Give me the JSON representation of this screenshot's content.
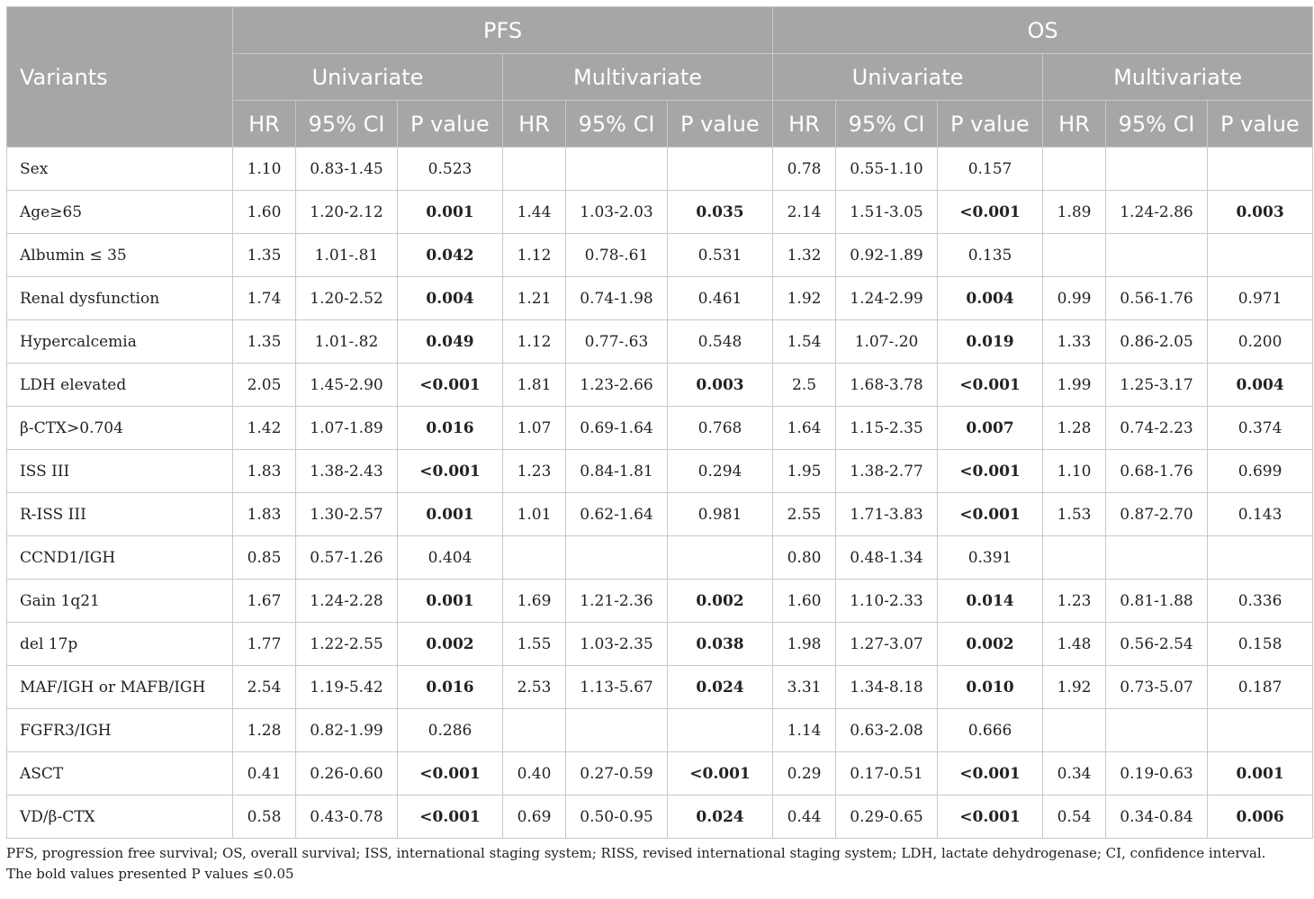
{
  "header": {
    "variants": "Variants",
    "groups": [
      "PFS",
      "OS"
    ],
    "subgroups": [
      "Univariate",
      "Multivariate",
      "Univariate",
      "Multivariate"
    ],
    "cols": [
      "HR",
      "95% CI",
      "P value",
      "HR",
      "95% CI",
      "P value",
      "HR",
      "95% CI",
      "P value",
      "HR",
      "95% CI",
      "P value"
    ]
  },
  "rows": [
    {
      "label": "Sex",
      "cells": [
        {
          "v": "1.10"
        },
        {
          "v": "0.83-1.45"
        },
        {
          "v": "0.523"
        },
        {
          "v": ""
        },
        {
          "v": ""
        },
        {
          "v": ""
        },
        {
          "v": "0.78"
        },
        {
          "v": "0.55-1.10"
        },
        {
          "v": "0.157"
        },
        {
          "v": ""
        },
        {
          "v": ""
        },
        {
          "v": ""
        }
      ]
    },
    {
      "label": "Age≥65",
      "cells": [
        {
          "v": "1.60"
        },
        {
          "v": "1.20-2.12"
        },
        {
          "v": "0.001",
          "b": true
        },
        {
          "v": "1.44"
        },
        {
          "v": "1.03-2.03"
        },
        {
          "v": "0.035",
          "b": true
        },
        {
          "v": "2.14"
        },
        {
          "v": "1.51-3.05"
        },
        {
          "v": "<0.001",
          "b": true
        },
        {
          "v": "1.89"
        },
        {
          "v": "1.24-2.86"
        },
        {
          "v": "0.003",
          "b": true
        }
      ]
    },
    {
      "label": "Albumin ≤ 35",
      "cells": [
        {
          "v": "1.35"
        },
        {
          "v": "1.01-.81"
        },
        {
          "v": "0.042",
          "b": true
        },
        {
          "v": "1.12"
        },
        {
          "v": "0.78-.61"
        },
        {
          "v": "0.531"
        },
        {
          "v": "1.32"
        },
        {
          "v": "0.92-1.89"
        },
        {
          "v": "0.135"
        },
        {
          "v": ""
        },
        {
          "v": ""
        },
        {
          "v": ""
        }
      ]
    },
    {
      "label": "Renal dysfunction",
      "cells": [
        {
          "v": "1.74"
        },
        {
          "v": "1.20-2.52"
        },
        {
          "v": "0.004",
          "b": true
        },
        {
          "v": "1.21"
        },
        {
          "v": "0.74-1.98"
        },
        {
          "v": "0.461"
        },
        {
          "v": "1.92"
        },
        {
          "v": "1.24-2.99"
        },
        {
          "v": "0.004",
          "b": true
        },
        {
          "v": "0.99"
        },
        {
          "v": "0.56-1.76"
        },
        {
          "v": "0.971"
        }
      ]
    },
    {
      "label": "Hypercalcemia",
      "cells": [
        {
          "v": "1.35"
        },
        {
          "v": "1.01-.82"
        },
        {
          "v": "0.049",
          "b": true
        },
        {
          "v": "1.12"
        },
        {
          "v": "0.77-.63"
        },
        {
          "v": "0.548"
        },
        {
          "v": "1.54"
        },
        {
          "v": "1.07-.20"
        },
        {
          "v": "0.019",
          "b": true
        },
        {
          "v": "1.33"
        },
        {
          "v": "0.86-2.05"
        },
        {
          "v": "0.200"
        }
      ]
    },
    {
      "label": "LDH elevated",
      "cells": [
        {
          "v": "2.05"
        },
        {
          "v": "1.45-2.90"
        },
        {
          "v": "<0.001",
          "b": true
        },
        {
          "v": "1.81"
        },
        {
          "v": "1.23-2.66"
        },
        {
          "v": "0.003",
          "b": true
        },
        {
          "v": "2.5"
        },
        {
          "v": "1.68-3.78"
        },
        {
          "v": "<0.001",
          "b": true
        },
        {
          "v": "1.99"
        },
        {
          "v": "1.25-3.17"
        },
        {
          "v": "0.004",
          "b": true
        }
      ]
    },
    {
      "label": "β-CTX>0.704",
      "cells": [
        {
          "v": "1.42"
        },
        {
          "v": "1.07-1.89"
        },
        {
          "v": "0.016",
          "b": true
        },
        {
          "v": "1.07"
        },
        {
          "v": "0.69-1.64"
        },
        {
          "v": "0.768"
        },
        {
          "v": "1.64"
        },
        {
          "v": "1.15-2.35"
        },
        {
          "v": "0.007",
          "b": true
        },
        {
          "v": "1.28"
        },
        {
          "v": "0.74-2.23"
        },
        {
          "v": "0.374"
        }
      ]
    },
    {
      "label": "ISS III",
      "cells": [
        {
          "v": "1.83"
        },
        {
          "v": "1.38-2.43"
        },
        {
          "v": "<0.001",
          "b": true
        },
        {
          "v": "1.23"
        },
        {
          "v": "0.84-1.81"
        },
        {
          "v": "0.294"
        },
        {
          "v": "1.95"
        },
        {
          "v": "1.38-2.77"
        },
        {
          "v": "<0.001",
          "b": true
        },
        {
          "v": "1.10"
        },
        {
          "v": "0.68-1.76"
        },
        {
          "v": "0.699"
        }
      ]
    },
    {
      "label": "R-ISS III",
      "cells": [
        {
          "v": "1.83"
        },
        {
          "v": "1.30-2.57"
        },
        {
          "v": "0.001",
          "b": true
        },
        {
          "v": "1.01"
        },
        {
          "v": "0.62-1.64"
        },
        {
          "v": "0.981"
        },
        {
          "v": "2.55"
        },
        {
          "v": "1.71-3.83"
        },
        {
          "v": "<0.001",
          "b": true
        },
        {
          "v": "1.53"
        },
        {
          "v": "0.87-2.70"
        },
        {
          "v": "0.143"
        }
      ]
    },
    {
      "label": "CCND1/IGH",
      "cells": [
        {
          "v": "0.85"
        },
        {
          "v": "0.57-1.26"
        },
        {
          "v": "0.404"
        },
        {
          "v": ""
        },
        {
          "v": ""
        },
        {
          "v": ""
        },
        {
          "v": "0.80"
        },
        {
          "v": "0.48-1.34"
        },
        {
          "v": "0.391"
        },
        {
          "v": ""
        },
        {
          "v": ""
        },
        {
          "v": ""
        }
      ]
    },
    {
      "label": "Gain 1q21",
      "cells": [
        {
          "v": "1.67"
        },
        {
          "v": "1.24-2.28"
        },
        {
          "v": "0.001",
          "b": true
        },
        {
          "v": "1.69"
        },
        {
          "v": "1.21-2.36"
        },
        {
          "v": "0.002",
          "b": true
        },
        {
          "v": "1.60"
        },
        {
          "v": "1.10-2.33"
        },
        {
          "v": "0.014",
          "b": true
        },
        {
          "v": "1.23"
        },
        {
          "v": "0.81-1.88"
        },
        {
          "v": "0.336"
        }
      ]
    },
    {
      "label": "del 17p",
      "cells": [
        {
          "v": "1.77"
        },
        {
          "v": "1.22-2.55"
        },
        {
          "v": "0.002",
          "b": true
        },
        {
          "v": "1.55"
        },
        {
          "v": "1.03-2.35"
        },
        {
          "v": "0.038",
          "b": true
        },
        {
          "v": "1.98"
        },
        {
          "v": "1.27-3.07"
        },
        {
          "v": "0.002",
          "b": true
        },
        {
          "v": "1.48"
        },
        {
          "v": "0.56-2.54"
        },
        {
          "v": "0.158"
        }
      ]
    },
    {
      "label": "MAF/IGH or MAFB/IGH",
      "cells": [
        {
          "v": "2.54"
        },
        {
          "v": "1.19-5.42"
        },
        {
          "v": "0.016",
          "b": true
        },
        {
          "v": "2.53"
        },
        {
          "v": "1.13-5.67"
        },
        {
          "v": "0.024",
          "b": true
        },
        {
          "v": "3.31"
        },
        {
          "v": "1.34-8.18"
        },
        {
          "v": "0.010",
          "b": true
        },
        {
          "v": "1.92"
        },
        {
          "v": "0.73-5.07"
        },
        {
          "v": "0.187"
        }
      ]
    },
    {
      "label": "FGFR3/IGH",
      "cells": [
        {
          "v": "1.28"
        },
        {
          "v": "0.82-1.99"
        },
        {
          "v": "0.286"
        },
        {
          "v": ""
        },
        {
          "v": ""
        },
        {
          "v": ""
        },
        {
          "v": "1.14"
        },
        {
          "v": "0.63-2.08"
        },
        {
          "v": "0.666"
        },
        {
          "v": ""
        },
        {
          "v": ""
        },
        {
          "v": ""
        }
      ]
    },
    {
      "label": "ASCT",
      "cells": [
        {
          "v": "0.41"
        },
        {
          "v": "0.26-0.60"
        },
        {
          "v": "<0.001",
          "b": true
        },
        {
          "v": "0.40"
        },
        {
          "v": "0.27-0.59"
        },
        {
          "v": "<0.001",
          "b": true
        },
        {
          "v": "0.29"
        },
        {
          "v": "0.17-0.51"
        },
        {
          "v": "<0.001",
          "b": true
        },
        {
          "v": "0.34"
        },
        {
          "v": "0.19-0.63"
        },
        {
          "v": "0.001",
          "b": true
        }
      ]
    },
    {
      "label": "VD/β-CTX",
      "cells": [
        {
          "v": "0.58"
        },
        {
          "v": "0.43-0.78"
        },
        {
          "v": "<0.001",
          "b": true
        },
        {
          "v": "0.69"
        },
        {
          "v": "0.50-0.95"
        },
        {
          "v": "0.024",
          "b": true
        },
        {
          "v": "0.44"
        },
        {
          "v": "0.29-0.65"
        },
        {
          "v": "<0.001",
          "b": true
        },
        {
          "v": "0.54"
        },
        {
          "v": "0.34-0.84"
        },
        {
          "v": "0.006",
          "b": true
        }
      ]
    }
  ],
  "notes": {
    "abbrev": "PFS, progression free survival; OS, overall survival; ISS, international staging system; RISS, revised international staging system; LDH, lactate dehydrogenase; CI, confidence interval.",
    "bold": "The bold values presented P values ≤0.05"
  },
  "colors": {
    "header_bg": "#a6a6a6",
    "header_text": "#ffffff",
    "grid": "#c8c8c8",
    "body_text": "#222222"
  }
}
